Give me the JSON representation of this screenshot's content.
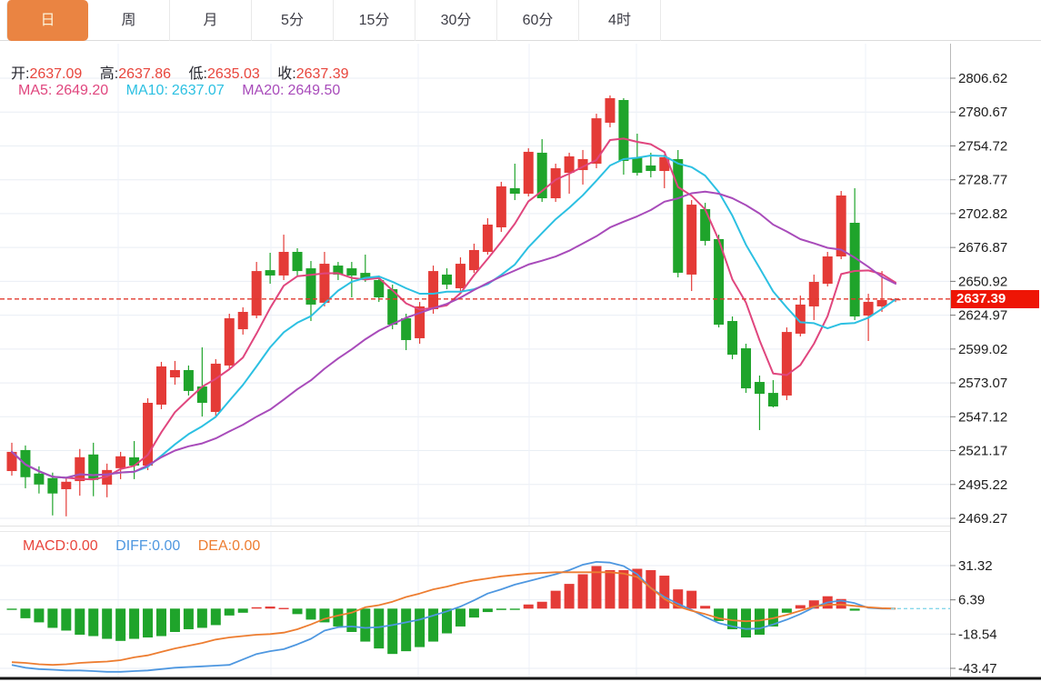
{
  "tabs": {
    "items": [
      {
        "label": "日",
        "active": true
      },
      {
        "label": "周",
        "active": false
      },
      {
        "label": "月",
        "active": false
      },
      {
        "label": "5分",
        "active": false
      },
      {
        "label": "15分",
        "active": false
      },
      {
        "label": "30分",
        "active": false
      },
      {
        "label": "60分",
        "active": false
      },
      {
        "label": "4时",
        "active": false
      }
    ]
  },
  "info": {
    "ohlc": [
      {
        "label": "开:",
        "value": "2637.09"
      },
      {
        "label": "高:",
        "value": "2637.86"
      },
      {
        "label": "低:",
        "value": "2635.03"
      },
      {
        "label": "收:",
        "value": "2637.39"
      }
    ],
    "ma": [
      {
        "label": "MA5:",
        "value": "2649.20"
      },
      {
        "label": "MA10:",
        "value": "2637.07"
      },
      {
        "label": "MA20:",
        "value": "2649.50"
      }
    ]
  },
  "macd_info": {
    "items": [
      {
        "label": "MACD:",
        "value": "0.00"
      },
      {
        "label": "DIFF:",
        "value": "0.00"
      },
      {
        "label": "DEA:",
        "value": "0.00"
      }
    ]
  },
  "price_axis": {
    "current": "2637.39"
  },
  "colors": {
    "up": "#e43b37",
    "down": "#1fa42b",
    "ma5": "#e0467e",
    "ma10": "#2cc0e2",
    "ma20": "#a84bba",
    "diff": "#4e97e0",
    "dea": "#ed7d31",
    "tab_accent": "#ea8442",
    "badge": "#ee1505",
    "grid": "#e9eef4",
    "grid_v": "#eef2f8",
    "axis_text": "#1c1c1c",
    "current_line": "#e23a2e",
    "zero_dash": "#86d7ea"
  },
  "chart_data": {
    "type": "candlestick",
    "title": "",
    "legend": [
      "MA5",
      "MA10",
      "MA20",
      "MACD",
      "DIFF",
      "DEA"
    ],
    "price_ticks": [
      "2806.62",
      "2780.67",
      "2754.72",
      "2728.77",
      "2702.82",
      "2676.87",
      "2650.92",
      "2624.97",
      "2599.02",
      "2573.07",
      "2547.12",
      "2521.17",
      "2495.22",
      "2469.27"
    ],
    "price_range": [
      2469.27,
      2806.62
    ],
    "current_price": 2637.39,
    "ma_periods": [
      5,
      10,
      20
    ],
    "ma_last": {
      "MA5": 2649.2,
      "MA10": 2637.07,
      "MA20": 2649.5
    },
    "candles_ohlc": [
      [
        2505.5,
        2527.2,
        2502.0,
        2520.2
      ],
      [
        2521.6,
        2525.1,
        2492.3,
        2500.8
      ],
      [
        2503.6,
        2509.1,
        2488.3,
        2495.2
      ],
      [
        2500.1,
        2504.3,
        2471.5,
        2488.3
      ],
      [
        2491.6,
        2500.8,
        2470.8,
        2497.3
      ],
      [
        2497.8,
        2522.4,
        2486.6,
        2516.1
      ],
      [
        2518.2,
        2527.2,
        2486.2,
        2498.7
      ],
      [
        2495.1,
        2511.2,
        2485.4,
        2506.3
      ],
      [
        2507.7,
        2520.2,
        2499.3,
        2516.8
      ],
      [
        2516.0,
        2528.5,
        2499.3,
        2509.7
      ],
      [
        2509.7,
        2561.3,
        2506.2,
        2557.8
      ],
      [
        2556.4,
        2589.2,
        2552.9,
        2585.7
      ],
      [
        2577.3,
        2589.9,
        2571.7,
        2582.9
      ],
      [
        2582.9,
        2586.4,
        2563.4,
        2566.9
      ],
      [
        2570.3,
        2600.3,
        2547.3,
        2557.8
      ],
      [
        2550.8,
        2591.3,
        2547.3,
        2587.8
      ],
      [
        2586.4,
        2626.1,
        2582.9,
        2622.6
      ],
      [
        2614.2,
        2631.0,
        2610.1,
        2627.5
      ],
      [
        2624.7,
        2665.8,
        2622.6,
        2658.8
      ],
      [
        2659.5,
        2672.8,
        2649.1,
        2655.4
      ],
      [
        2655.4,
        2686.7,
        2651.9,
        2673.5
      ],
      [
        2673.5,
        2676.3,
        2655.4,
        2658.8
      ],
      [
        2660.9,
        2666.5,
        2620.5,
        2633.1
      ],
      [
        2634.5,
        2673.5,
        2631.7,
        2664.4
      ],
      [
        2663.0,
        2665.8,
        2651.9,
        2656.1
      ],
      [
        2660.9,
        2665.8,
        2638.6,
        2655.4
      ],
      [
        2657.4,
        2671.4,
        2650.5,
        2652.6
      ],
      [
        2651.9,
        2655.4,
        2635.1,
        2638.6
      ],
      [
        2644.9,
        2648.4,
        2614.2,
        2617.7
      ],
      [
        2622.6,
        2626.1,
        2598.2,
        2605.9
      ],
      [
        2607.3,
        2635.1,
        2603.1,
        2631.7
      ],
      [
        2629.6,
        2663.0,
        2626.1,
        2658.8
      ],
      [
        2656.1,
        2660.9,
        2644.9,
        2648.4
      ],
      [
        2645.6,
        2669.3,
        2643.5,
        2664.4
      ],
      [
        2659.5,
        2679.8,
        2657.4,
        2674.9
      ],
      [
        2673.5,
        2699.3,
        2671.4,
        2694.4
      ],
      [
        2692.3,
        2727.2,
        2688.8,
        2723.7
      ],
      [
        2722.3,
        2741.1,
        2713.2,
        2718.1
      ],
      [
        2718.1,
        2752.9,
        2716.0,
        2750.2
      ],
      [
        2749.5,
        2759.9,
        2711.8,
        2714.6
      ],
      [
        2714.6,
        2741.1,
        2711.8,
        2737.6
      ],
      [
        2734.1,
        2749.5,
        2718.1,
        2746.7
      ],
      [
        2736.2,
        2751.6,
        2725.1,
        2744.6
      ],
      [
        2741.1,
        2779.4,
        2737.6,
        2775.9
      ],
      [
        2772.5,
        2793.4,
        2769.0,
        2791.3
      ],
      [
        2789.9,
        2791.3,
        2732.7,
        2743.2
      ],
      [
        2745.9,
        2764.1,
        2732.0,
        2734.1
      ],
      [
        2739.7,
        2749.5,
        2730.6,
        2735.5
      ],
      [
        2735.5,
        2748.1,
        2722.3,
        2746.0
      ],
      [
        2744.6,
        2751.6,
        2654.0,
        2657.5
      ],
      [
        2656.1,
        2713.2,
        2643.5,
        2709.7
      ],
      [
        2706.3,
        2711.1,
        2678.4,
        2681.9
      ],
      [
        2683.3,
        2686.7,
        2615.6,
        2617.7
      ],
      [
        2620.5,
        2624.0,
        2591.2,
        2594.7
      ],
      [
        2599.6,
        2603.1,
        2565.4,
        2568.9
      ],
      [
        2573.8,
        2578.7,
        2536.9,
        2564.7
      ],
      [
        2565.4,
        2575.2,
        2554.3,
        2555.0
      ],
      [
        2563.4,
        2615.6,
        2559.9,
        2612.1
      ],
      [
        2610.8,
        2640.0,
        2608.7,
        2633.1
      ],
      [
        2631.7,
        2656.1,
        2621.2,
        2650.5
      ],
      [
        2649.1,
        2673.5,
        2647.0,
        2670.0
      ],
      [
        2670.0,
        2720.2,
        2667.9,
        2716.7
      ],
      [
        2695.8,
        2722.3,
        2621.2,
        2624.0
      ],
      [
        2624.7,
        2641.4,
        2605.2,
        2635.2
      ],
      [
        2631.7,
        2658.8,
        2627.5,
        2636.6
      ],
      [
        2637.09,
        2637.86,
        2635.03,
        2637.39
      ]
    ],
    "macd_ticks": [
      "31.32",
      "6.39",
      "-18.54",
      "-43.47"
    ],
    "macd_last": {
      "MACD": 0.0,
      "DIFF": 0.0,
      "DEA": 0.0
    },
    "macd_histogram": [
      -0.5,
      -7,
      -10,
      -14,
      -16,
      -19,
      -20,
      -22,
      -23.5,
      -22,
      -21,
      -20,
      -17,
      -15,
      -14,
      -12,
      -5,
      -3,
      1,
      1.5,
      0.5,
      -4,
      -8,
      -10,
      -13,
      -17,
      -24,
      -29,
      -33,
      -31,
      -28,
      -24,
      -18,
      -13,
      -6.5,
      -2.5,
      -1,
      -0.5,
      3,
      5,
      13,
      18,
      25,
      31,
      28,
      28,
      29,
      28,
      24,
      14,
      13,
      2,
      -9,
      -15,
      -21,
      -19,
      -13,
      -3,
      2.5,
      6,
      9,
      7,
      -1.5,
      0,
      0,
      0
    ],
    "macd_diff": [
      -41,
      -43,
      -44,
      -44.5,
      -45,
      -45,
      -45.5,
      -46,
      -46,
      -45.5,
      -45,
      -44,
      -43,
      -42.5,
      -42,
      -41.5,
      -41,
      -37,
      -33,
      -31,
      -29.5,
      -26,
      -22,
      -16,
      -13.5,
      -13,
      -14,
      -13.5,
      -12,
      -10,
      -8,
      -5,
      -2,
      1.5,
      6,
      11,
      14,
      17.5,
      20,
      22.5,
      25,
      28,
      32,
      34,
      33.5,
      31,
      25,
      15,
      8.5,
      3.5,
      -1,
      -6,
      -10.5,
      -13,
      -14.8,
      -14.5,
      -11.5,
      -8,
      -4,
      1,
      4.5,
      5.8,
      4,
      0.5,
      0,
      0
    ],
    "macd_dea": [
      -39,
      -39.5,
      -40.5,
      -41,
      -40.5,
      -39.5,
      -39,
      -38.5,
      -37.5,
      -35.5,
      -34,
      -31.5,
      -29,
      -27,
      -25,
      -22.5,
      -21,
      -20,
      -19,
      -18.5,
      -17.5,
      -15,
      -11.5,
      -7.5,
      -5,
      -3,
      1,
      2.5,
      5,
      8.5,
      11,
      14,
      16,
      18.5,
      20.5,
      22,
      23.5,
      24.5,
      25.5,
      26,
      26.5,
      26.5,
      26.5,
      26.5,
      26.5,
      25.5,
      23,
      15,
      7,
      1.5,
      -1.5,
      -4,
      -7,
      -8.5,
      -9.2,
      -8.7,
      -7,
      -4.5,
      -1.5,
      1.5,
      2.8,
      3,
      2,
      1,
      0.3,
      0
    ]
  }
}
